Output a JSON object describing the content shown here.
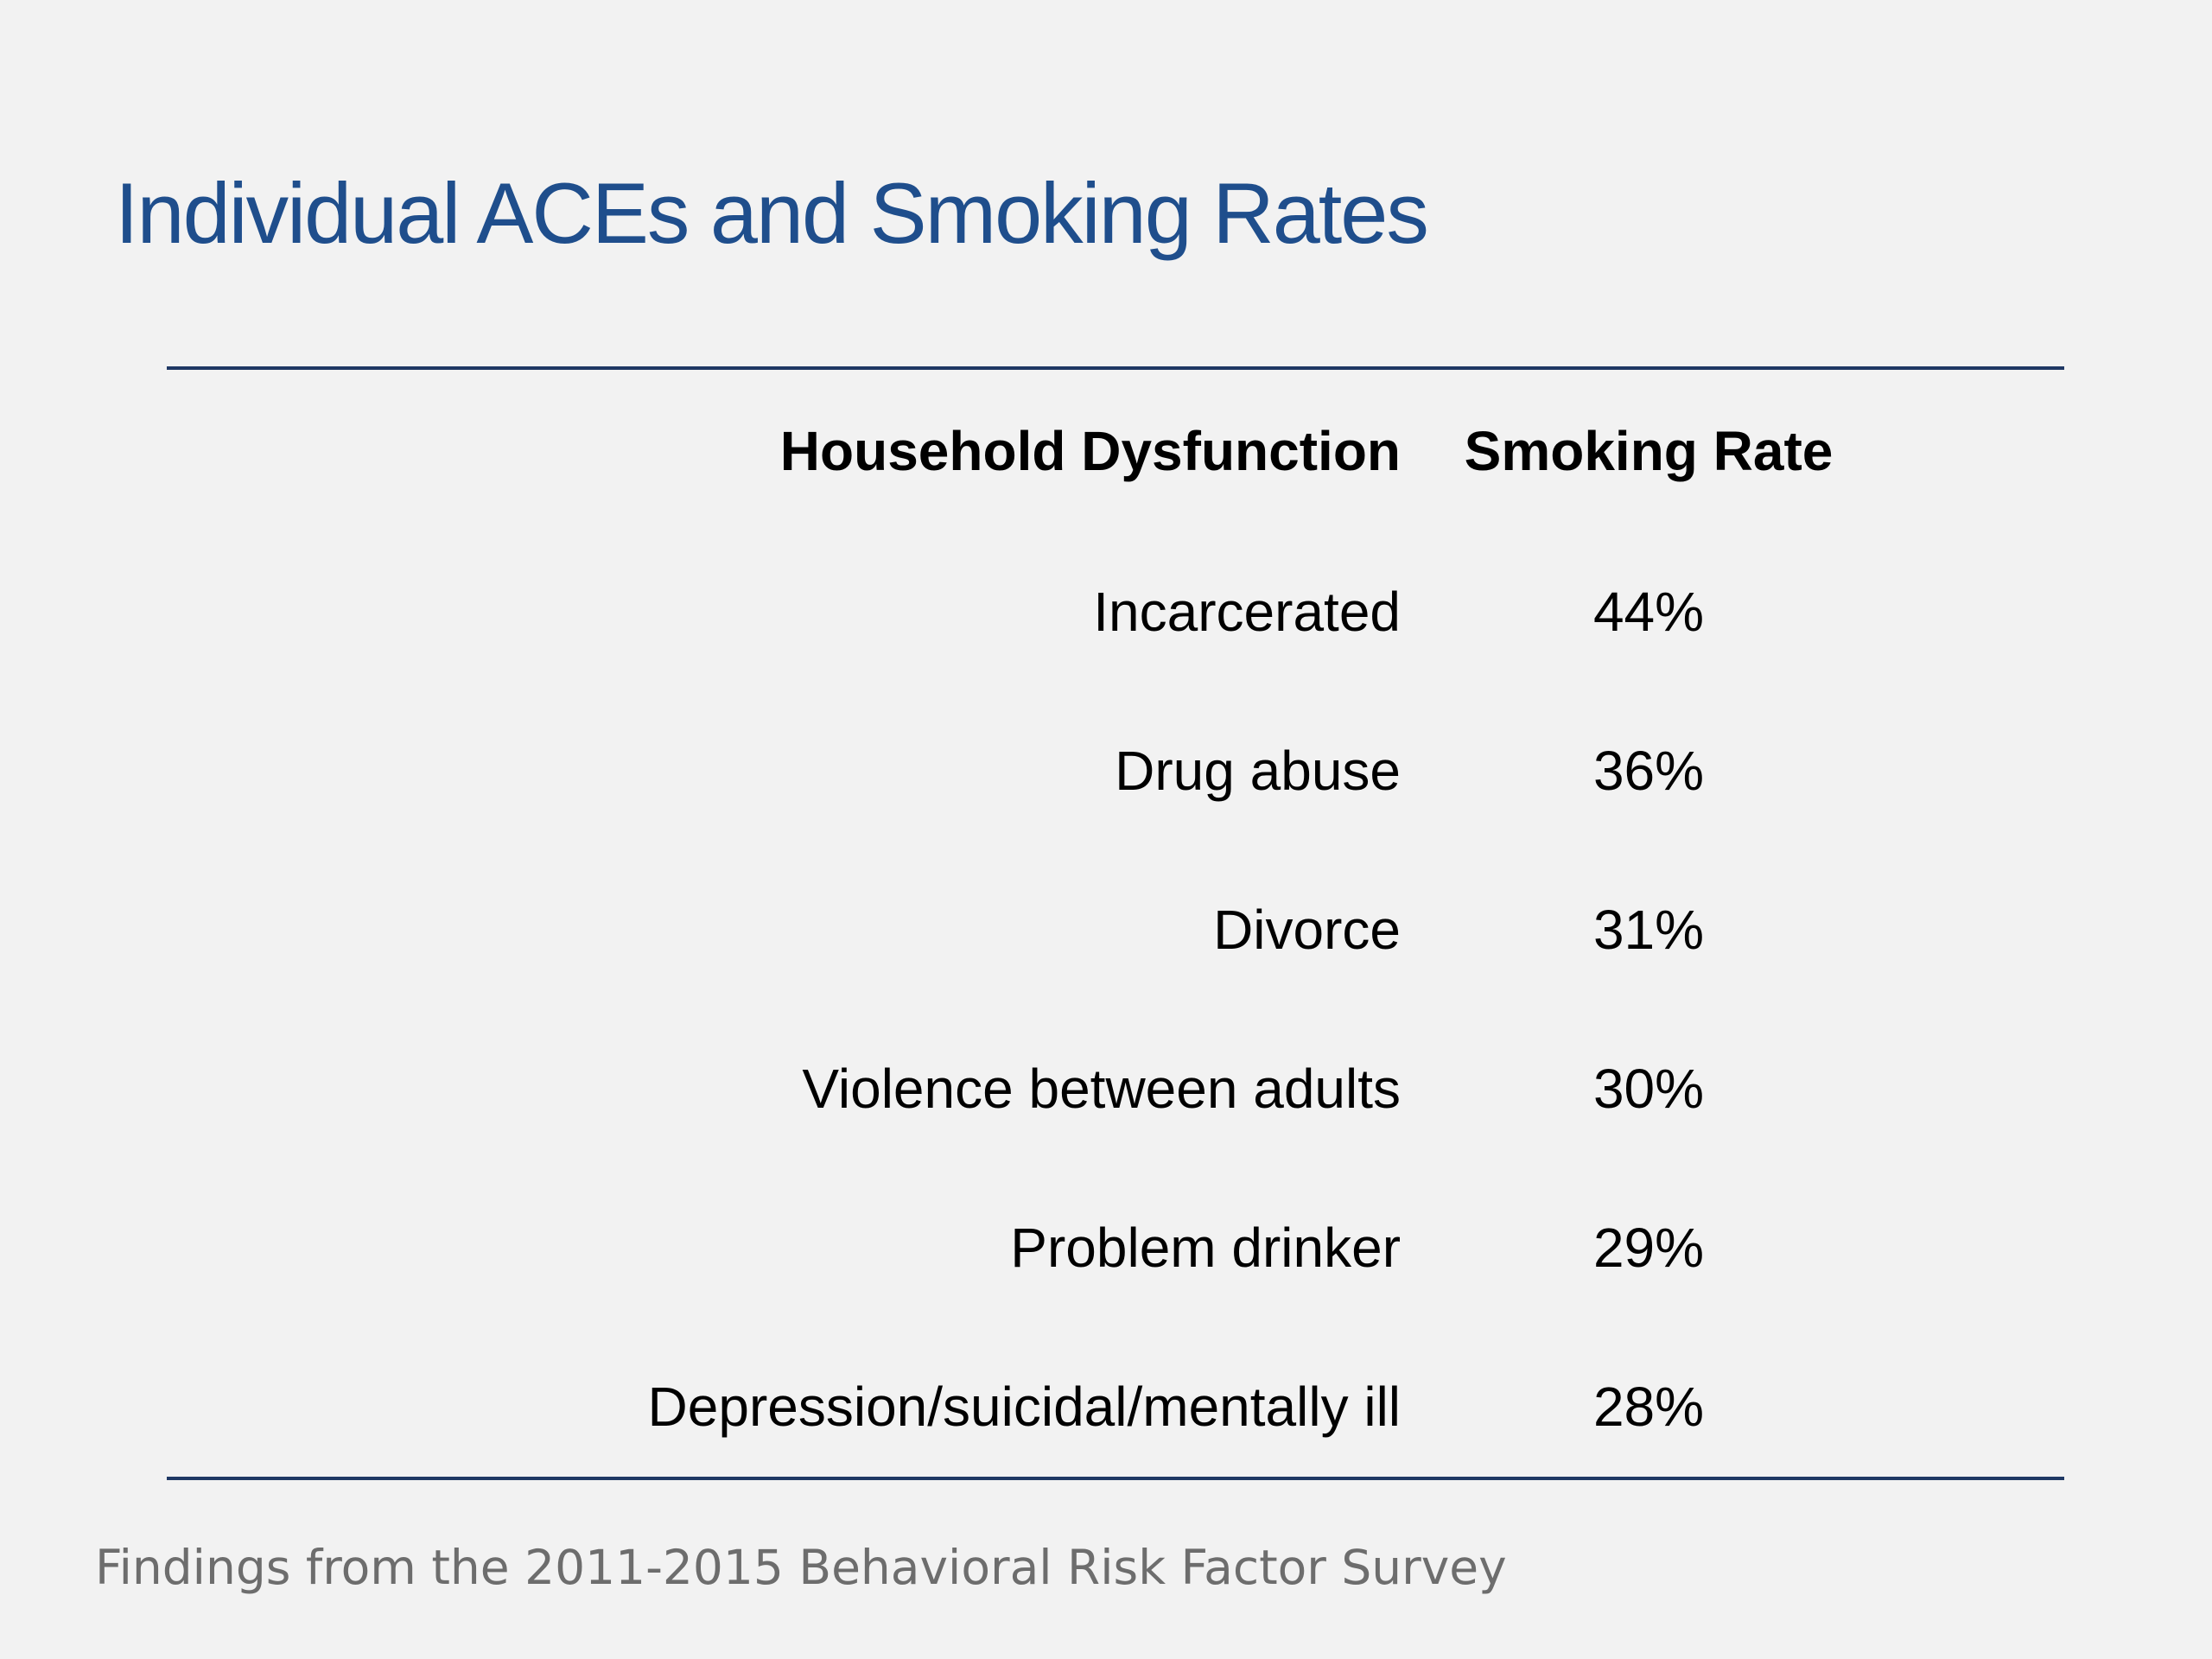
{
  "slide": {
    "title": "Individual ACEs and Smoking Rates",
    "footnote": "Findings from the 2011-2015 Behavioral Risk Factor Survey"
  },
  "table": {
    "headers": {
      "dysfunction": "Household Dysfunction",
      "rate": "Smoking Rate"
    },
    "rows": [
      {
        "dysfunction": "Incarcerated",
        "rate": "44%"
      },
      {
        "dysfunction": "Drug abuse",
        "rate": "36%"
      },
      {
        "dysfunction": "Divorce",
        "rate": "31%"
      },
      {
        "dysfunction": "Violence between adults",
        "rate": "30%"
      },
      {
        "dysfunction": "Problem drinker",
        "rate": "29%"
      },
      {
        "dysfunction": "Depression/suicidal/mentally ill",
        "rate": "28%"
      }
    ]
  },
  "colors": {
    "title": "#1f4e8c",
    "rule": "#1f3864",
    "background": "#f2f2f2",
    "footnote": "#6d6d6d"
  }
}
